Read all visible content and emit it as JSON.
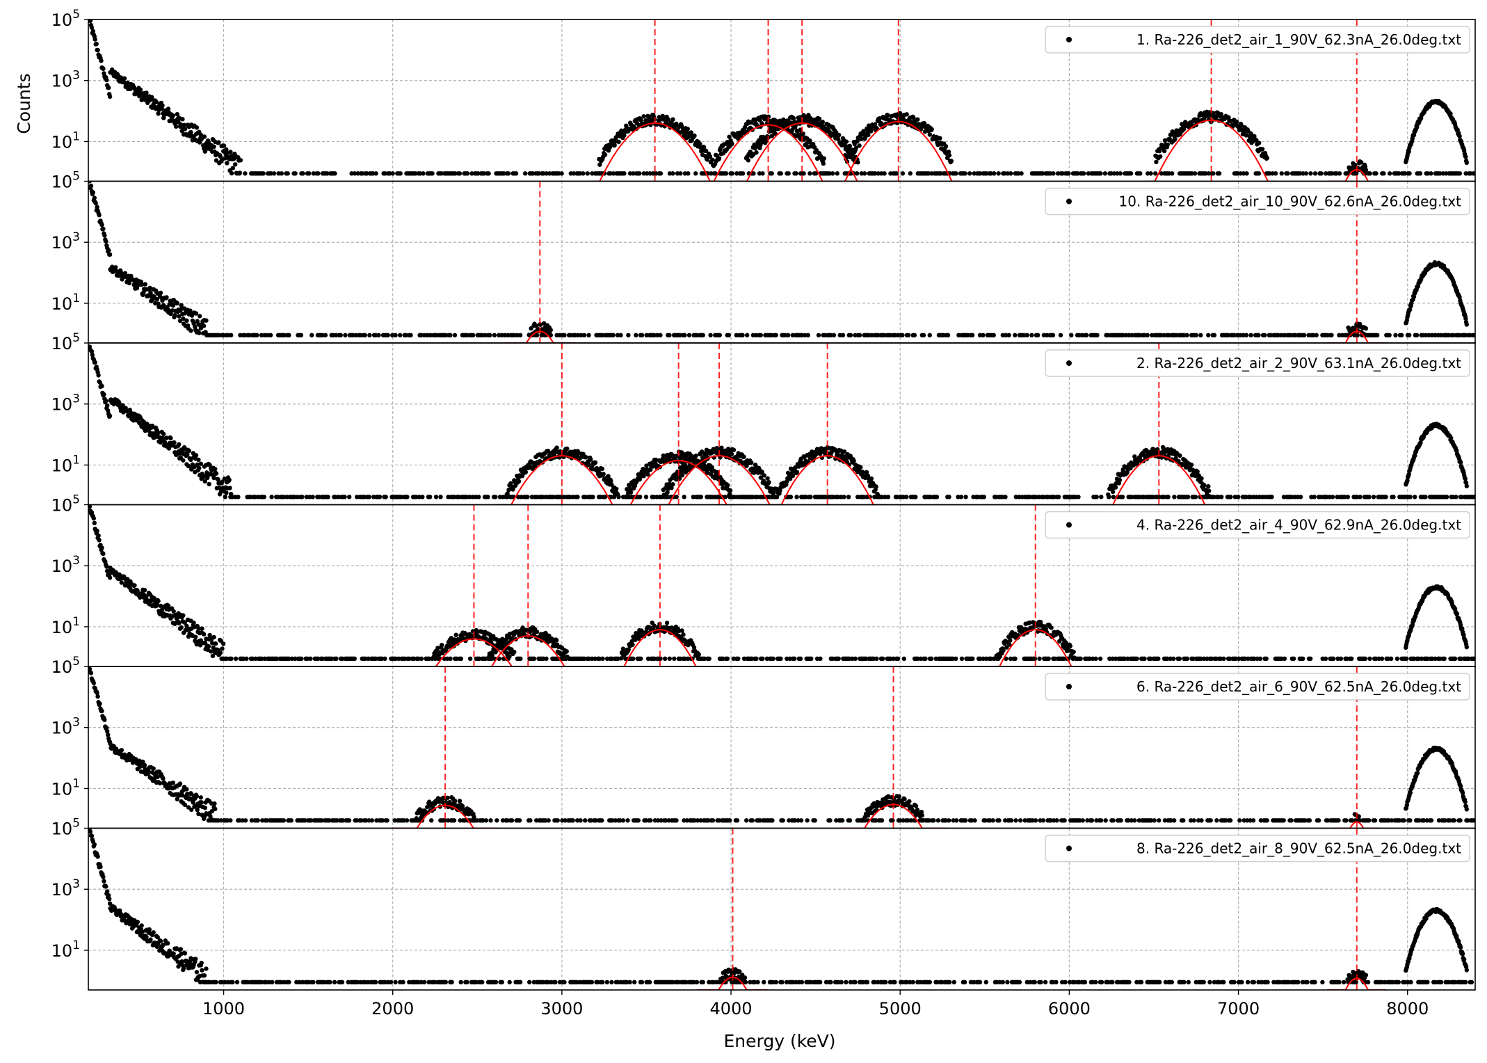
{
  "figure": {
    "xlabel": "Energy (keV)",
    "ylabel": "Counts"
  },
  "chart_data": {
    "type": "scatter",
    "xlim": [
      200,
      8400
    ],
    "x_ticks": [
      1000,
      2000,
      3000,
      4000,
      5000,
      6000,
      7000,
      8000
    ],
    "x_tick_labels": [
      "1000",
      "2000",
      "3000",
      "4000",
      "5000",
      "6000",
      "7000",
      "8000"
    ],
    "y_scale": "log",
    "ylim": [
      0.5,
      100000
    ],
    "y_ticks": [
      10,
      1000,
      100000
    ],
    "y_tick_labels": [
      {
        "base": "10",
        "exp": "1"
      },
      {
        "base": "10",
        "exp": "3"
      },
      {
        "base": "10",
        "exp": "5"
      }
    ],
    "grid": true,
    "legend_placement": "top-right",
    "colors": {
      "data": "#000000",
      "fit": "#ff0000",
      "peak_line": "#ff0000",
      "grid": "#b0b0b0"
    },
    "panels": [
      {
        "legend": "1. Ra-226_det2_air_1_90V_62.3nA_26.0deg.txt",
        "tail_level": 2000,
        "tail_end": 1100,
        "floor_end": 8400,
        "fit_peaks": [
          {
            "energy": 3550,
            "amplitude": 40,
            "sigma": 110
          },
          {
            "energy": 4220,
            "amplitude": 35,
            "sigma": 110
          },
          {
            "energy": 4420,
            "amplitude": 40,
            "sigma": 110
          },
          {
            "energy": 4990,
            "amplitude": 45,
            "sigma": 105
          },
          {
            "energy": 6840,
            "amplitude": 50,
            "sigma": 110
          },
          {
            "energy": 7700,
            "amplitude": 1.2,
            "sigma": 50
          }
        ],
        "vlines": [
          3550,
          4220,
          4420,
          4990,
          6840,
          7700
        ],
        "reference_peak": {
          "energy": 8170,
          "amplitude": 200,
          "sigma": 60
        }
      },
      {
        "legend": "10. Ra-226_det2_air_10_90V_62.6nA_26.0deg.txt",
        "tail_level": 150,
        "tail_end": 900,
        "floor_end": 8400,
        "fit_peaks": [
          {
            "energy": 2870,
            "amplitude": 1.2,
            "sigma": 60
          },
          {
            "energy": 7700,
            "amplitude": 1.2,
            "sigma": 50
          }
        ],
        "vlines": [
          2870,
          7700
        ],
        "reference_peak": {
          "energy": 8170,
          "amplitude": 200,
          "sigma": 60
        }
      },
      {
        "legend": "2. Ra-226_det2_air_2_90V_63.1nA_26.0deg.txt",
        "tail_level": 1500,
        "tail_end": 1050,
        "floor_end": 8400,
        "fit_peaks": [
          {
            "energy": 3000,
            "amplitude": 20,
            "sigma": 110
          },
          {
            "energy": 3690,
            "amplitude": 14,
            "sigma": 110
          },
          {
            "energy": 3930,
            "amplitude": 20,
            "sigma": 110
          },
          {
            "energy": 4570,
            "amplitude": 20,
            "sigma": 100
          },
          {
            "energy": 6530,
            "amplitude": 20,
            "sigma": 100
          }
        ],
        "vlines": [
          3000,
          3690,
          3930,
          4570,
          6530
        ],
        "reference_peak": {
          "energy": 8170,
          "amplitude": 200,
          "sigma": 60
        }
      },
      {
        "legend": "4. Ra-226_det2_air_4_90V_62.9nA_26.0deg.txt",
        "tail_level": 700,
        "tail_end": 1000,
        "floor_end": 8400,
        "fit_peaks": [
          {
            "energy": 2480,
            "amplitude": 4,
            "sigma": 110
          },
          {
            "energy": 2800,
            "amplitude": 5,
            "sigma": 100
          },
          {
            "energy": 3580,
            "amplitude": 8,
            "sigma": 90
          },
          {
            "energy": 5800,
            "amplitude": 8,
            "sigma": 90
          }
        ],
        "vlines": [
          2480,
          2800,
          3580,
          5800
        ],
        "reference_peak": {
          "energy": 8170,
          "amplitude": 200,
          "sigma": 60
        }
      },
      {
        "legend": "6. Ra-226_det2_air_6_90V_62.5nA_26.0deg.txt",
        "tail_level": 250,
        "tail_end": 950,
        "floor_end": 8400,
        "fit_peaks": [
          {
            "energy": 2310,
            "amplitude": 2.8,
            "sigma": 90
          },
          {
            "energy": 4960,
            "amplitude": 3,
            "sigma": 90
          },
          {
            "energy": 7700,
            "amplitude": 0.8,
            "sigma": 40
          }
        ],
        "vlines": [
          2310,
          4960,
          7700
        ],
        "reference_peak": {
          "energy": 8170,
          "amplitude": 200,
          "sigma": 60
        }
      },
      {
        "legend": "8. Ra-226_det2_air_8_90V_62.5nA_26.0deg.txt",
        "tail_level": 250,
        "tail_end": 900,
        "floor_end": 8400,
        "fit_peaks": [
          {
            "energy": 4010,
            "amplitude": 1.3,
            "sigma": 60
          },
          {
            "energy": 7700,
            "amplitude": 1.2,
            "sigma": 50
          }
        ],
        "vlines": [
          4010,
          7700
        ],
        "reference_peak": {
          "energy": 8170,
          "amplitude": 200,
          "sigma": 60
        }
      }
    ]
  }
}
